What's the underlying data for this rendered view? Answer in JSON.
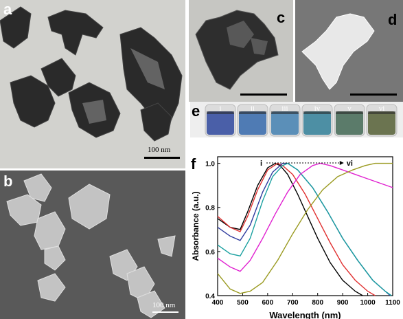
{
  "panels": {
    "a": {
      "label": "a",
      "scale_label": "100 nm"
    },
    "b": {
      "label": "b",
      "scale_label": "100 nm"
    },
    "c": {
      "label": "c"
    },
    "d": {
      "label": "d"
    },
    "e": {
      "label": "e",
      "vials": [
        "i",
        "ii",
        "iii",
        "iv",
        "v",
        "vi"
      ],
      "vial_colors": [
        "#4a5fa8",
        "#4f7bb4",
        "#5b8fb8",
        "#4d8fa4",
        "#5b7b6a",
        "#6b7450"
      ]
    },
    "f": {
      "label": "f"
    }
  },
  "chart_data": {
    "type": "line",
    "xlabel": "Wavelength (nm)",
    "ylabel": "Absorbance (a.u.)",
    "xlim": [
      400,
      1100
    ],
    "ylim": [
      0.4,
      1.03
    ],
    "xticks": [
      "400",
      "500",
      "600",
      "700",
      "800",
      "900",
      "1000",
      "1100"
    ],
    "yticks": [
      "0.4",
      "0.6",
      "0.8",
      "1.0"
    ],
    "arrow": {
      "from_label": "i",
      "to_label": "vi"
    },
    "series": [
      {
        "color": "#000000",
        "x": [
          400,
          450,
          490,
          520,
          560,
          600,
          630,
          650,
          680,
          720,
          760,
          800,
          850,
          900,
          950,
          980
        ],
        "y": [
          0.75,
          0.71,
          0.7,
          0.78,
          0.9,
          0.98,
          1.0,
          0.99,
          0.95,
          0.86,
          0.76,
          0.66,
          0.55,
          0.47,
          0.42,
          0.4
        ]
      },
      {
        "color": "#e03030",
        "x": [
          400,
          450,
          490,
          520,
          560,
          600,
          640,
          660,
          700,
          750,
          800,
          850,
          900,
          950,
          1000,
          1030
        ],
        "y": [
          0.76,
          0.71,
          0.69,
          0.76,
          0.88,
          0.97,
          1.0,
          0.99,
          0.95,
          0.86,
          0.75,
          0.64,
          0.54,
          0.47,
          0.42,
          0.4
        ]
      },
      {
        "color": "#2e3a9e",
        "x": [
          400,
          450,
          490,
          530,
          580,
          620,
          660,
          680,
          720,
          780,
          840,
          900,
          960,
          1020,
          1070,
          1090
        ],
        "y": [
          0.71,
          0.67,
          0.65,
          0.72,
          0.87,
          0.96,
          1.0,
          1.0,
          0.97,
          0.89,
          0.78,
          0.66,
          0.56,
          0.47,
          0.42,
          0.4
        ]
      },
      {
        "color": "#1aa0a0",
        "x": [
          400,
          450,
          490,
          530,
          580,
          620,
          660,
          680,
          720,
          780,
          840,
          900,
          960,
          1020,
          1070,
          1095
        ],
        "y": [
          0.63,
          0.59,
          0.58,
          0.66,
          0.83,
          0.94,
          0.99,
          1.0,
          0.97,
          0.89,
          0.78,
          0.66,
          0.56,
          0.47,
          0.42,
          0.4
        ]
      },
      {
        "color": "#e020d0",
        "x": [
          400,
          450,
          490,
          530,
          580,
          630,
          680,
          730,
          780,
          810,
          850,
          900,
          950,
          1000,
          1050,
          1100
        ],
        "y": [
          0.57,
          0.53,
          0.51,
          0.56,
          0.66,
          0.77,
          0.87,
          0.95,
          0.99,
          1.0,
          0.99,
          0.97,
          0.95,
          0.93,
          0.91,
          0.89
        ]
      },
      {
        "color": "#9a9a20",
        "x": [
          400,
          450,
          490,
          530,
          580,
          640,
          700,
          760,
          820,
          880,
          940,
          990,
          1030,
          1060,
          1080,
          1100
        ],
        "y": [
          0.5,
          0.43,
          0.41,
          0.42,
          0.46,
          0.56,
          0.68,
          0.79,
          0.88,
          0.94,
          0.97,
          0.99,
          1.0,
          1.0,
          1.0,
          1.0
        ]
      }
    ]
  }
}
